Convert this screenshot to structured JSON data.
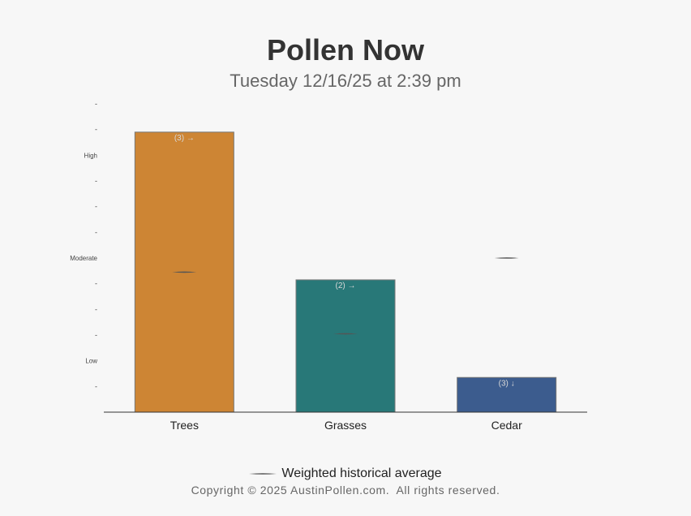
{
  "title": "Pollen Now",
  "subtitle": "Tuesday 12/16/25 at 2:39 pm",
  "legend_label": "Weighted historical average",
  "copyright": "Copyright © 2025 AustinPollen.com.  All rights reserved.",
  "colors": {
    "trees": "#cd8534",
    "grasses": "#287878",
    "cedar": "#3c5c8e",
    "avg_marker": "#555555"
  },
  "chart_data": {
    "type": "bar",
    "title": "Pollen Now",
    "subtitle": "Tuesday 12/16/25 at 2:39 pm",
    "categories": [
      "Trees",
      "Grasses",
      "Cedar"
    ],
    "values": [
      10.9,
      5.15,
      1.35
    ],
    "bar_labels": [
      "(3) →",
      "(2) →",
      "(3) ↓"
    ],
    "historical_average": [
      5.45,
      3.05,
      6.0
    ],
    "ylim": [
      0,
      12
    ],
    "ytick_labels": [
      {
        "value": 1,
        "label": "-"
      },
      {
        "value": 2,
        "label": "Low"
      },
      {
        "value": 3,
        "label": "-"
      },
      {
        "value": 4,
        "label": "-"
      },
      {
        "value": 5,
        "label": "-"
      },
      {
        "value": 6,
        "label": "Moderate"
      },
      {
        "value": 7,
        "label": "-"
      },
      {
        "value": 8,
        "label": "-"
      },
      {
        "value": 9,
        "label": "-"
      },
      {
        "value": 10,
        "label": "High"
      },
      {
        "value": 11,
        "label": "-"
      },
      {
        "value": 12,
        "label": "-"
      }
    ],
    "legend": "Weighted historical average",
    "grid": false
  }
}
